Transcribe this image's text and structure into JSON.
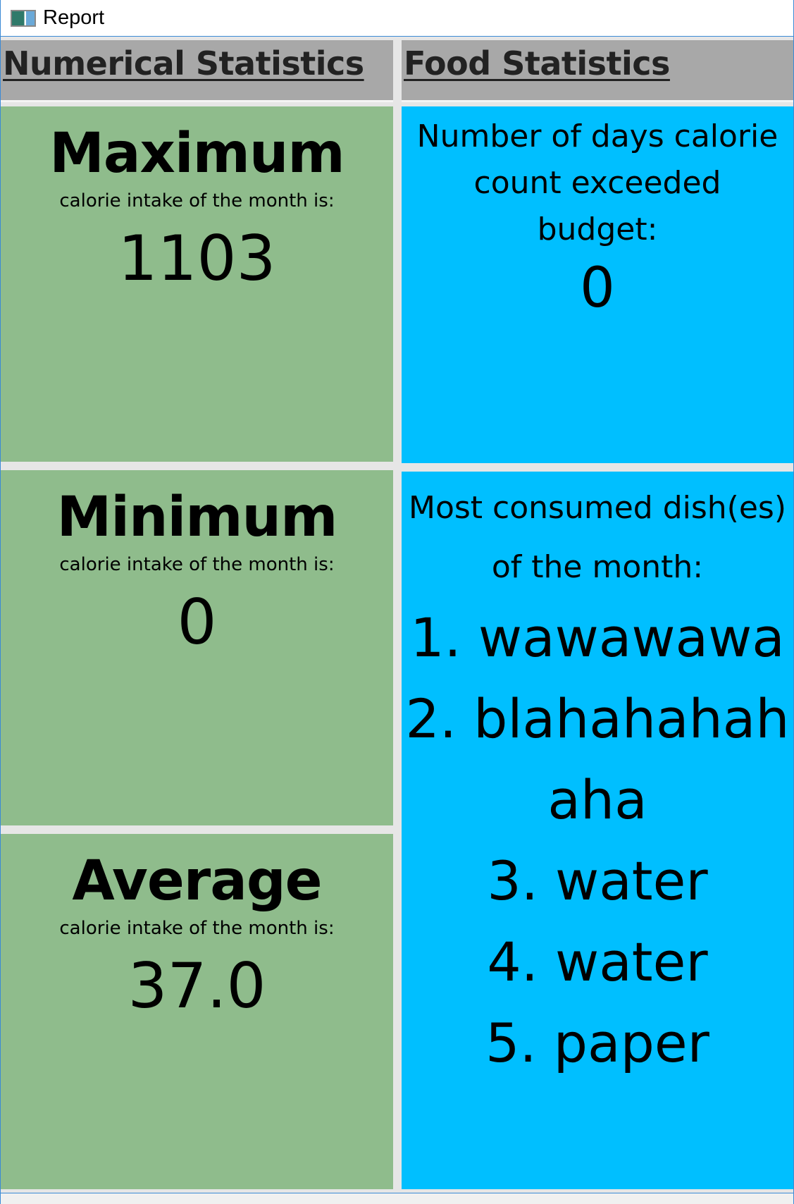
{
  "window": {
    "title": "Report"
  },
  "numerical": {
    "header": "Numerical Statistics",
    "maximum": {
      "label": "Maximum",
      "description": "calorie intake of the month is:",
      "value": "1103"
    },
    "minimum": {
      "label": "Minimum",
      "description": "calorie intake of the month is:",
      "value": "0"
    },
    "average": {
      "label": "Average",
      "description": "calorie intake of the month is:",
      "value": "37.0"
    }
  },
  "food": {
    "header": "Food Statistics",
    "exceeded": {
      "description_line1": "Number of days calorie",
      "description_line2": "count exceeded",
      "description_line3": "budget:",
      "value": "0"
    },
    "most_consumed": {
      "description_line1": "Most consumed dish(es)",
      "description_line2": "of the month:",
      "dishes": [
        "1. wawawawa",
        "2. blahahahahaha",
        "3. water",
        "4. water",
        "5. paper"
      ]
    }
  },
  "colors": {
    "numerical_panel": "#8fbc8c",
    "food_panel": "#00bfff",
    "header_bg": "#a8a8a8"
  }
}
